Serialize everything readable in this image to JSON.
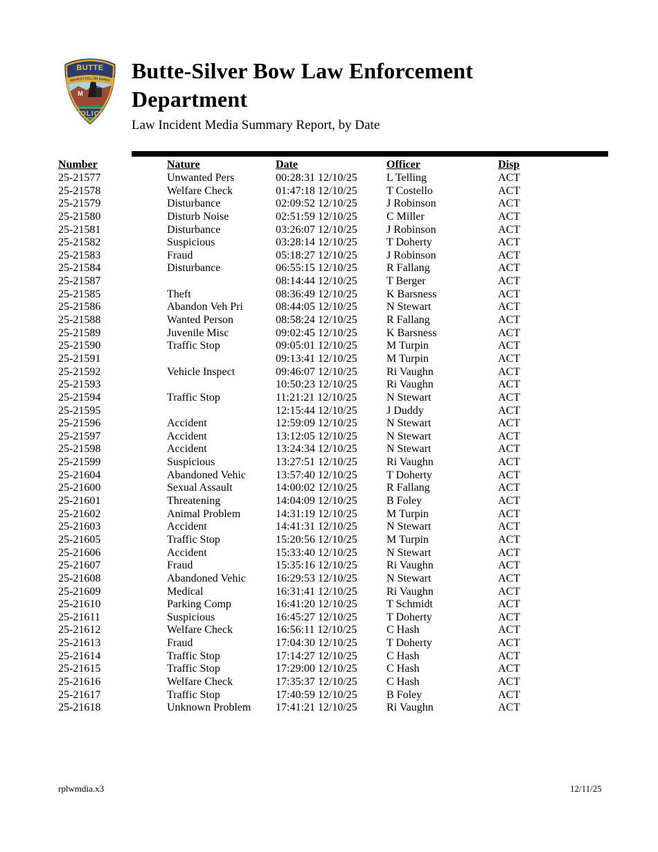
{
  "page": {
    "background": "#ffffff"
  },
  "divider_color": "#000000",
  "header": {
    "title_lines": [
      "Butte-Silver Bow Law Enforcement",
      "Department"
    ],
    "subtitle": "Law Incident Media Summary Report, by Date",
    "badge": {
      "icon": "butte-police-badge",
      "text_top": "BUTTE",
      "text_ribbon": "RICHEST HILL ON EARTH",
      "text_band": "POLICE",
      "text_mountain": "M",
      "colors": {
        "navy": "#2e3c6a",
        "gold": "#dfa93e",
        "goldtext": "#eec35a",
        "sky": "#a8d2e8",
        "mountain": "#9a4a34",
        "green": "#1d9356",
        "dark": "#1a1a1a"
      }
    }
  },
  "table": {
    "headers": [
      "Number",
      "Nature",
      "Date",
      "Officer",
      "Disp"
    ],
    "rows": [
      [
        "25-21577",
        "Unwanted Pers",
        "00:28:31 12/10/25",
        "L Telling",
        "ACT"
      ],
      [
        "25-21578",
        "Welfare Check",
        "01:47:18 12/10/25",
        "T Costello",
        "ACT"
      ],
      [
        "25-21579",
        "Disturbance",
        "02:09:52 12/10/25",
        "J Robinson",
        "ACT"
      ],
      [
        "25-21580",
        "Disturb Noise",
        "02:51:59 12/10/25",
        "C Miller",
        "ACT"
      ],
      [
        "25-21581",
        "Disturbance",
        "03:26:07 12/10/25",
        "J Robinson",
        "ACT"
      ],
      [
        "25-21582",
        "Suspicious",
        "03:28:14 12/10/25",
        "T Doherty",
        "ACT"
      ],
      [
        "25-21583",
        "Fraud",
        "05:18:27 12/10/25",
        "J Robinson",
        "ACT"
      ],
      [
        "25-21584",
        "Disturbance",
        "06:55:15 12/10/25",
        "R Fallang",
        "ACT"
      ],
      [
        "25-21587",
        "",
        "08:14:44 12/10/25",
        "T Berger",
        "ACT"
      ],
      [
        "25-21585",
        "Theft",
        "08:36:49 12/10/25",
        "K Barsness",
        "ACT"
      ],
      [
        "25-21586",
        "Abandon Veh Pri",
        "08:44:05 12/10/25",
        "N Stewart",
        "ACT"
      ],
      [
        "25-21588",
        "Wanted Person",
        "08:58:24 12/10/25",
        "R Fallang",
        "ACT"
      ],
      [
        "25-21589",
        "Juvenile Misc",
        "09:02:45 12/10/25",
        "K Barsness",
        "ACT"
      ],
      [
        "25-21590",
        "Traffic Stop",
        "09:05:01 12/10/25",
        "M Turpin",
        "ACT"
      ],
      [
        "25-21591",
        "",
        "09:13:41 12/10/25",
        "M Turpin",
        "ACT"
      ],
      [
        "25-21592",
        "Vehicle Inspect",
        "09:46:07 12/10/25",
        "Ri Vaughn",
        "ACT"
      ],
      [
        "25-21593",
        "",
        "10:50:23 12/10/25",
        "Ri Vaughn",
        "ACT"
      ],
      [
        "25-21594",
        "Traffic Stop",
        "11:21:21 12/10/25",
        "N Stewart",
        "ACT"
      ],
      [
        "25-21595",
        "",
        "12:15:44 12/10/25",
        "J Duddy",
        "ACT"
      ],
      [
        "25-21596",
        "Accident",
        "12:59:09 12/10/25",
        "N Stewart",
        "ACT"
      ],
      [
        "25-21597",
        "Accident",
        "13:12:05 12/10/25",
        "N Stewart",
        "ACT"
      ],
      [
        "25-21598",
        "Accident",
        "13:24:34 12/10/25",
        "N Stewart",
        "ACT"
      ],
      [
        "25-21599",
        "Suspicious",
        "13:27:51 12/10/25",
        "Ri Vaughn",
        "ACT"
      ],
      [
        "25-21604",
        "Abandoned Vehic",
        "13:57:40 12/10/25",
        "T Doherty",
        "ACT"
      ],
      [
        "25-21600",
        "Sexual Assault",
        "14:00:02 12/10/25",
        "R Fallang",
        "ACT"
      ],
      [
        "25-21601",
        "Threatening",
        "14:04:09 12/10/25",
        "B Foley",
        "ACT"
      ],
      [
        "25-21602",
        "Animal Problem",
        "14:31:19 12/10/25",
        "M Turpin",
        "ACT"
      ],
      [
        "25-21603",
        "Accident",
        "14:41:31 12/10/25",
        "N Stewart",
        "ACT"
      ],
      [
        "25-21605",
        "Traffic Stop",
        "15:20:56 12/10/25",
        "M Turpin",
        "ACT"
      ],
      [
        "25-21606",
        "Accident",
        "15:33:40 12/10/25",
        "N Stewart",
        "ACT"
      ],
      [
        "25-21607",
        "Fraud",
        "15:35:16 12/10/25",
        "Ri Vaughn",
        "ACT"
      ],
      [
        "25-21608",
        "Abandoned Vehic",
        "16:29:53 12/10/25",
        "N Stewart",
        "ACT"
      ],
      [
        "25-21609",
        "Medical",
        "16:31:41 12/10/25",
        "Ri Vaughn",
        "ACT"
      ],
      [
        "25-21610",
        "Parking Comp",
        "16:41:20 12/10/25",
        "T Schmidt",
        "ACT"
      ],
      [
        "25-21611",
        "Suspicious",
        "16:45:27 12/10/25",
        "T Doherty",
        "ACT"
      ],
      [
        "25-21612",
        "Welfare Check",
        "16:56:11 12/10/25",
        "C Hash",
        "ACT"
      ],
      [
        "25-21613",
        "Fraud",
        "17:04:30 12/10/25",
        "T Doherty",
        "ACT"
      ],
      [
        "25-21614",
        "Traffic Stop",
        "17:14:27 12/10/25",
        "C Hash",
        "ACT"
      ],
      [
        "25-21615",
        "Traffic Stop",
        "17:29:00 12/10/25",
        "C Hash",
        "ACT"
      ],
      [
        "25-21616",
        "Welfare Check",
        "17:35:37 12/10/25",
        "C Hash",
        "ACT"
      ],
      [
        "25-21617",
        "Traffic Stop",
        "17:40:59 12/10/25",
        "B Foley",
        "ACT"
      ],
      [
        "25-21618",
        "Unknown Problem",
        "17:41:21 12/10/25",
        "Ri Vaughn",
        "ACT"
      ]
    ]
  },
  "footer": {
    "left": "rplwmdia.x3",
    "right": "12/11/25"
  }
}
